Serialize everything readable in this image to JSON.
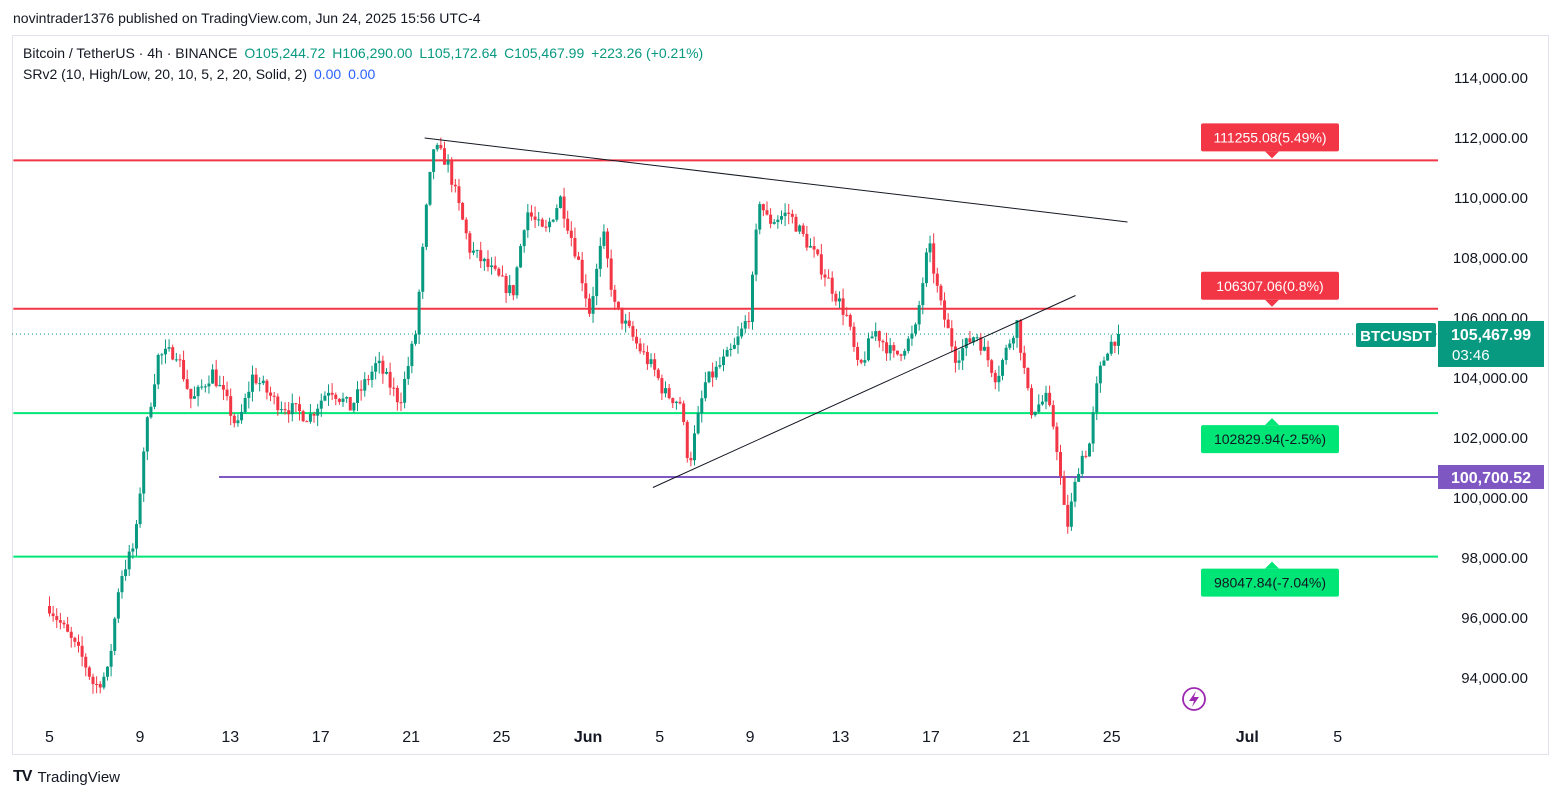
{
  "header": {
    "published_by": "novintrader1376 published on TradingView.com, Jun 24, 2025 15:56 UTC-4"
  },
  "legend": {
    "symbol": "Bitcoin / TetherUS · 4h · BINANCE",
    "open": "O105,244.72",
    "high": "H106,290.00",
    "low": "L105,172.64",
    "close": "C105,467.99",
    "change": "+223.26 (+0.21%)",
    "indicator": "SRv2 (10, High/Low, 20, 10, 5, 2, 20, Solid, 2)",
    "indicator_val1": "0.00",
    "indicator_val2": "0.00"
  },
  "footer": {
    "brand": "TradingView"
  },
  "colors": {
    "up": "#089981",
    "down": "#f23645",
    "resistance": "#f23645",
    "support": "#00e676",
    "pivot": "#7e57c2",
    "trend": "#131722"
  },
  "chart_data": {
    "type": "candlestick",
    "symbol_badge": "BTCUSDT",
    "last_price": "105,467.99",
    "countdown": "03:46",
    "ylim": [
      92500,
      115800
    ],
    "y_ticks": [
      "114,000.00",
      "112,000.00",
      "110,000.00",
      "108,000.00",
      "106,000.00",
      "104,000.00",
      "102,000.00",
      "100,000.00",
      "98,000.00",
      "96,000.00",
      "94,000.00"
    ],
    "y_tick_values": [
      114000,
      112000,
      110000,
      108000,
      106000,
      104000,
      102000,
      100000,
      98000,
      96000,
      94000
    ],
    "x_ticks": [
      "5",
      "9",
      "13",
      "17",
      "21",
      "25",
      "Jun",
      "5",
      "9",
      "13",
      "17",
      "21",
      "25",
      "Jul",
      "5"
    ],
    "x_tick_days": [
      0,
      4,
      8,
      12,
      16,
      20,
      23.83,
      27,
      31,
      35,
      39,
      43,
      47,
      53,
      57
    ],
    "x_range_days": [
      -1.6,
      59
    ],
    "candle_count": 296,
    "levels": [
      {
        "price": 111255.08,
        "label": "111255.08(5.49%)",
        "kind": "resistance",
        "x_from_day": -1.6
      },
      {
        "price": 106307.06,
        "label": "106307.06(0.8%)",
        "kind": "resistance",
        "x_from_day": -1.6
      },
      {
        "price": 102829.94,
        "label": "102829.94(-2.5%)",
        "kind": "support",
        "x_from_day": -1.6
      },
      {
        "price": 98047.84,
        "label": "98047.84(-7.04%)",
        "kind": "support",
        "x_from_day": -1.6
      },
      {
        "price": 100700.52,
        "label": "100,700.52",
        "kind": "pivot",
        "x_from_day": 7.5
      }
    ],
    "trendlines": [
      {
        "from": [
          16.6,
          112000
        ],
        "to": [
          47.7,
          109200
        ]
      },
      {
        "from": [
          26.7,
          100350
        ],
        "to": [
          45.4,
          106750
        ]
      }
    ],
    "anchors": [
      [
        0,
        96400
      ],
      [
        1.5,
        94600
      ],
      [
        2.0,
        93700
      ],
      [
        2.6,
        94200
      ],
      [
        3.1,
        97300
      ],
      [
        3.8,
        98500
      ],
      [
        4.2,
        101900
      ],
      [
        4.8,
        104700
      ],
      [
        5.6,
        104900
      ],
      [
        6.3,
        103200
      ],
      [
        7.2,
        104200
      ],
      [
        7.9,
        103100
      ],
      [
        8.3,
        102300
      ],
      [
        9.0,
        104100
      ],
      [
        10.0,
        103200
      ],
      [
        11.5,
        102700
      ],
      [
        12.4,
        103700
      ],
      [
        13.3,
        103000
      ],
      [
        14.5,
        104500
      ],
      [
        15.5,
        103200
      ],
      [
        16.2,
        105500
      ],
      [
        16.7,
        109800
      ],
      [
        17.0,
        111700
      ],
      [
        17.6,
        111200
      ],
      [
        18.6,
        108300
      ],
      [
        19.4,
        107700
      ],
      [
        20.5,
        106800
      ],
      [
        21.1,
        109600
      ],
      [
        21.9,
        108800
      ],
      [
        22.6,
        110000
      ],
      [
        23.4,
        107900
      ],
      [
        23.9,
        106200
      ],
      [
        24.5,
        108800
      ],
      [
        25.0,
        106400
      ],
      [
        26.0,
        105100
      ],
      [
        26.8,
        104200
      ],
      [
        27.2,
        103500
      ],
      [
        27.9,
        103200
      ],
      [
        28.3,
        101100
      ],
      [
        29.0,
        103800
      ],
      [
        30.3,
        105000
      ],
      [
        31.0,
        106200
      ],
      [
        31.4,
        110000
      ],
      [
        31.8,
        109200
      ],
      [
        32.7,
        109500
      ],
      [
        33.7,
        108300
      ],
      [
        34.5,
        107200
      ],
      [
        35.3,
        106000
      ],
      [
        35.8,
        104200
      ],
      [
        36.5,
        105600
      ],
      [
        37.4,
        104700
      ],
      [
        38.3,
        105500
      ],
      [
        38.9,
        108500
      ],
      [
        39.4,
        106500
      ],
      [
        40.1,
        104700
      ],
      [
        41.0,
        105500
      ],
      [
        41.9,
        104000
      ],
      [
        42.8,
        105900
      ],
      [
        43.4,
        102900
      ],
      [
        44.1,
        103300
      ],
      [
        44.5,
        102200
      ],
      [
        45.0,
        98900
      ],
      [
        45.6,
        101300
      ],
      [
        46.0,
        101700
      ],
      [
        46.4,
        104000
      ],
      [
        46.8,
        105000
      ],
      [
        47.3,
        105468
      ]
    ]
  }
}
